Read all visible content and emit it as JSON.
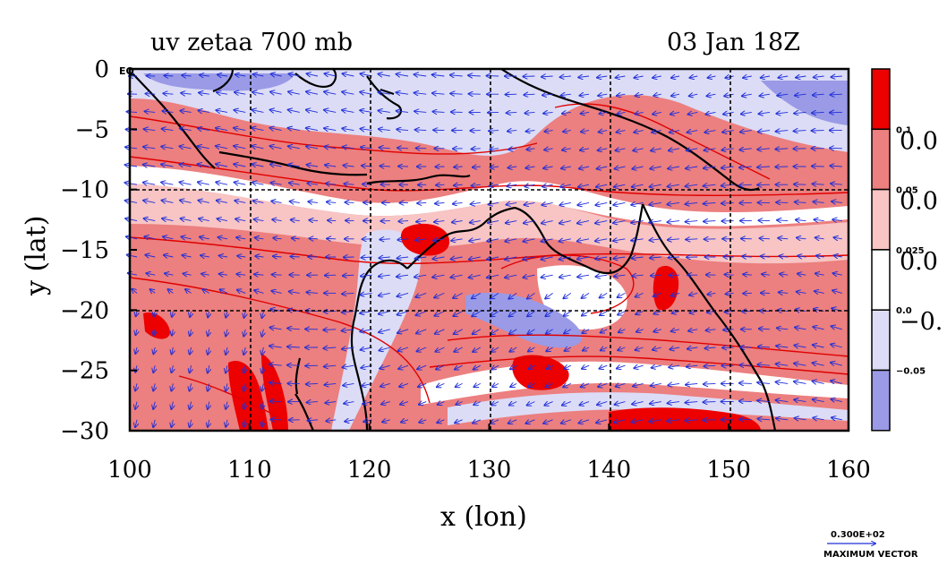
{
  "title_left": "uv zetaa 700 mb",
  "title_right": "03 Jan 18Z",
  "eq_label": "EQ",
  "x_axis": {
    "label": "x (lon)",
    "ticks": [
      100,
      110,
      120,
      130,
      140,
      150,
      160
    ],
    "range": [
      100,
      160
    ]
  },
  "y_axis": {
    "label": "y (lat)",
    "ticks": [
      0,
      -5,
      -10,
      -15,
      -20,
      -25,
      -30
    ],
    "range": [
      -30,
      0
    ]
  },
  "colorbar": {
    "levels": [
      {
        "color": "#ec0000",
        "small": "",
        "big": ""
      },
      {
        "color": "#ec7f7f",
        "small": "0.1",
        "big": "0.0"
      },
      {
        "color": "#f8c4c4",
        "small": "0.05",
        "big": "0.0"
      },
      {
        "color": "#ffffff",
        "small": "0.025",
        "big": "0.0"
      },
      {
        "color": "#dcdcf6",
        "small": "0.0",
        "big": "−0."
      },
      {
        "color": "#9a9ae6",
        "small": "−0.05",
        "big": ""
      }
    ]
  },
  "vector_legend": {
    "value": "0.300E+02",
    "caption": "MAXIMUM VECTOR"
  },
  "colors": {
    "strong_pos": "#ec0000",
    "mid_pos": "#ec7f7f",
    "weak_pos": "#f8c4c4",
    "zero": "#ffffff",
    "weak_neg": "#dcdcf6",
    "neg": "#9a9ae6",
    "vector": "#1f2fd8",
    "contour": "#e00000",
    "coast": "#000000"
  }
}
